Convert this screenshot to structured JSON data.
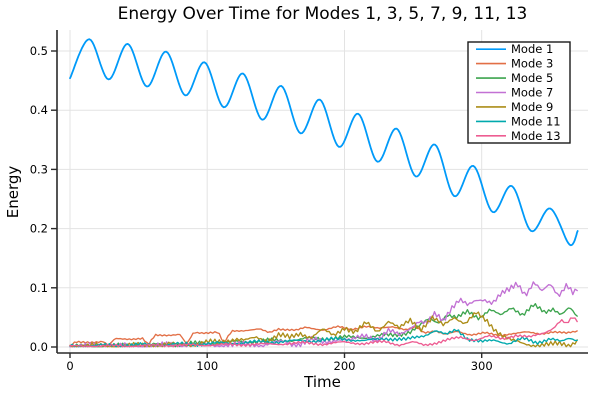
{
  "chart_data": {
    "type": "line",
    "title": "Energy Over Time for Modes 1, 3, 5, 7, 9, 11, 13",
    "xlabel": "Time",
    "ylabel": "Energy",
    "xlim": [
      -9.5,
      377.5
    ],
    "ylim": [
      -0.0101,
      0.5355
    ],
    "xticks": [
      0,
      100,
      200,
      300
    ],
    "yticks": [
      0.0,
      0.1,
      0.2,
      0.3,
      0.4,
      0.5
    ],
    "grid": true,
    "legend_position": "top-right",
    "colors": {
      "background": "#ffffff",
      "grid": "#e3e3e3",
      "spine": "#2a2a2a",
      "text": "#000000",
      "legend_border": "#1a1a1a",
      "legend_fill": "#ffffff"
    },
    "series": [
      {
        "name": "Mode 1",
        "color": "#009af9",
        "interp": "spline",
        "noise": 0,
        "points": [
          [
            0,
            0.454
          ],
          [
            14,
            0.52
          ],
          [
            28,
            0.452
          ],
          [
            42,
            0.512
          ],
          [
            56,
            0.44
          ],
          [
            70,
            0.499
          ],
          [
            84,
            0.425
          ],
          [
            98,
            0.481
          ],
          [
            112,
            0.405
          ],
          [
            126,
            0.462
          ],
          [
            140,
            0.384
          ],
          [
            154,
            0.441
          ],
          [
            168,
            0.361
          ],
          [
            182,
            0.418
          ],
          [
            196,
            0.338
          ],
          [
            210,
            0.394
          ],
          [
            224,
            0.313
          ],
          [
            238,
            0.369
          ],
          [
            252,
            0.288
          ],
          [
            266,
            0.342
          ],
          [
            280,
            0.255
          ],
          [
            294,
            0.306
          ],
          [
            308,
            0.228
          ],
          [
            322,
            0.272
          ],
          [
            336,
            0.196
          ],
          [
            350,
            0.234
          ],
          [
            364,
            0.173
          ],
          [
            370,
            0.196
          ]
        ]
      },
      {
        "name": "Mode 3",
        "color": "#e26f46",
        "interp": "linear",
        "noise": 0.002,
        "points": [
          [
            0,
            0.001
          ],
          [
            4,
            0.008
          ],
          [
            24,
            0.009
          ],
          [
            28,
            0.002
          ],
          [
            33,
            0.014
          ],
          [
            53,
            0.014
          ],
          [
            57,
            0.003
          ],
          [
            62,
            0.02
          ],
          [
            80,
            0.021
          ],
          [
            85,
            0.004
          ],
          [
            90,
            0.024
          ],
          [
            108,
            0.025
          ],
          [
            112,
            0.006
          ],
          [
            118,
            0.027
          ],
          [
            138,
            0.03
          ],
          [
            145,
            0.024
          ],
          [
            152,
            0.031
          ],
          [
            165,
            0.028
          ],
          [
            172,
            0.033
          ],
          [
            185,
            0.029
          ],
          [
            195,
            0.034
          ],
          [
            205,
            0.03
          ],
          [
            215,
            0.035
          ],
          [
            225,
            0.031
          ],
          [
            235,
            0.035
          ],
          [
            245,
            0.029
          ],
          [
            252,
            0.033
          ],
          [
            258,
            0.024
          ],
          [
            266,
            0.028
          ],
          [
            274,
            0.021
          ],
          [
            282,
            0.026
          ],
          [
            292,
            0.021
          ],
          [
            302,
            0.024
          ],
          [
            312,
            0.019
          ],
          [
            322,
            0.023
          ],
          [
            332,
            0.025
          ],
          [
            342,
            0.022
          ],
          [
            352,
            0.026
          ],
          [
            362,
            0.023
          ],
          [
            370,
            0.027
          ]
        ]
      },
      {
        "name": "Mode 5",
        "color": "#3da44e",
        "interp": "linear",
        "noise": 0.005,
        "points": [
          [
            0,
            0.001
          ],
          [
            40,
            0.002
          ],
          [
            70,
            0.004
          ],
          [
            100,
            0.006
          ],
          [
            130,
            0.009
          ],
          [
            160,
            0.012
          ],
          [
            190,
            0.015
          ],
          [
            215,
            0.017
          ],
          [
            235,
            0.02
          ],
          [
            248,
            0.026
          ],
          [
            255,
            0.035
          ],
          [
            262,
            0.048
          ],
          [
            268,
            0.042
          ],
          [
            275,
            0.055
          ],
          [
            282,
            0.048
          ],
          [
            290,
            0.06
          ],
          [
            298,
            0.05
          ],
          [
            306,
            0.063
          ],
          [
            314,
            0.052
          ],
          [
            322,
            0.068
          ],
          [
            330,
            0.055
          ],
          [
            338,
            0.07
          ],
          [
            346,
            0.058
          ],
          [
            352,
            0.066
          ],
          [
            358,
            0.056
          ],
          [
            364,
            0.066
          ],
          [
            370,
            0.048
          ]
        ]
      },
      {
        "name": "Mode 7",
        "color": "#c271d4",
        "interp": "linear",
        "noise": 0.007,
        "points": [
          [
            0,
            0.001
          ],
          [
            60,
            0.002
          ],
          [
            100,
            0.003
          ],
          [
            140,
            0.004
          ],
          [
            155,
            0.008
          ],
          [
            165,
            0.005
          ],
          [
            175,
            0.012
          ],
          [
            185,
            0.007
          ],
          [
            195,
            0.015
          ],
          [
            205,
            0.01
          ],
          [
            215,
            0.02
          ],
          [
            225,
            0.014
          ],
          [
            232,
            0.026
          ],
          [
            240,
            0.02
          ],
          [
            248,
            0.034
          ],
          [
            254,
            0.044
          ],
          [
            260,
            0.038
          ],
          [
            266,
            0.055
          ],
          [
            272,
            0.046
          ],
          [
            278,
            0.068
          ],
          [
            284,
            0.08
          ],
          [
            290,
            0.068
          ],
          [
            296,
            0.078
          ],
          [
            302,
            0.082
          ],
          [
            308,
            0.076
          ],
          [
            314,
            0.088
          ],
          [
            320,
            0.095
          ],
          [
            326,
            0.108
          ],
          [
            332,
            0.09
          ],
          [
            338,
            0.11
          ],
          [
            344,
            0.092
          ],
          [
            350,
            0.105
          ],
          [
            356,
            0.088
          ],
          [
            362,
            0.108
          ],
          [
            367,
            0.09
          ],
          [
            370,
            0.098
          ]
        ]
      },
      {
        "name": "Mode 9",
        "color": "#ac8d18",
        "interp": "linear",
        "noise": 0.006,
        "points": [
          [
            0,
            0.001
          ],
          [
            30,
            0.002
          ],
          [
            60,
            0.003
          ],
          [
            90,
            0.005
          ],
          [
            110,
            0.009
          ],
          [
            120,
            0.014
          ],
          [
            128,
            0.01
          ],
          [
            136,
            0.016
          ],
          [
            144,
            0.012
          ],
          [
            152,
            0.02
          ],
          [
            160,
            0.015
          ],
          [
            168,
            0.024
          ],
          [
            176,
            0.017
          ],
          [
            184,
            0.028
          ],
          [
            192,
            0.02
          ],
          [
            200,
            0.034
          ],
          [
            208,
            0.024
          ],
          [
            216,
            0.04
          ],
          [
            224,
            0.028
          ],
          [
            232,
            0.044
          ],
          [
            240,
            0.03
          ],
          [
            248,
            0.046
          ],
          [
            256,
            0.032
          ],
          [
            264,
            0.048
          ],
          [
            272,
            0.036
          ],
          [
            280,
            0.052
          ],
          [
            288,
            0.04
          ],
          [
            296,
            0.056
          ],
          [
            304,
            0.044
          ],
          [
            310,
            0.03
          ],
          [
            316,
            0.018
          ],
          [
            322,
            0.01
          ],
          [
            330,
            0.006
          ],
          [
            340,
            0.004
          ],
          [
            350,
            0.003
          ],
          [
            358,
            0.006
          ],
          [
            364,
            0.004
          ],
          [
            370,
            0.012
          ]
        ]
      },
      {
        "name": "Mode 11",
        "color": "#00a9ad",
        "interp": "linear",
        "noise": 0.004,
        "points": [
          [
            0,
            0.002
          ],
          [
            30,
            0.003
          ],
          [
            60,
            0.004
          ],
          [
            90,
            0.005
          ],
          [
            120,
            0.007
          ],
          [
            150,
            0.009
          ],
          [
            180,
            0.011
          ],
          [
            200,
            0.014
          ],
          [
            215,
            0.01
          ],
          [
            230,
            0.015
          ],
          [
            245,
            0.012
          ],
          [
            258,
            0.02
          ],
          [
            266,
            0.028
          ],
          [
            274,
            0.02
          ],
          [
            282,
            0.03
          ],
          [
            290,
            0.014
          ],
          [
            300,
            0.008
          ],
          [
            310,
            0.012
          ],
          [
            320,
            0.006
          ],
          [
            330,
            0.014
          ],
          [
            340,
            0.008
          ],
          [
            350,
            0.014
          ],
          [
            358,
            0.008
          ],
          [
            364,
            0.015
          ],
          [
            370,
            0.012
          ]
        ]
      },
      {
        "name": "Mode 13",
        "color": "#ed5d92",
        "interp": "linear",
        "noise": 0.003,
        "points": [
          [
            0,
            0.001
          ],
          [
            40,
            0.002
          ],
          [
            80,
            0.003
          ],
          [
            120,
            0.004
          ],
          [
            150,
            0.005
          ],
          [
            170,
            0.007
          ],
          [
            185,
            0.005
          ],
          [
            200,
            0.008
          ],
          [
            215,
            0.006
          ],
          [
            230,
            0.009
          ],
          [
            240,
            0.004
          ],
          [
            250,
            0.008
          ],
          [
            258,
            0.003
          ],
          [
            266,
            0.007
          ],
          [
            275,
            0.012
          ],
          [
            285,
            0.016
          ],
          [
            295,
            0.012
          ],
          [
            305,
            0.018
          ],
          [
            315,
            0.014
          ],
          [
            325,
            0.02
          ],
          [
            335,
            0.016
          ],
          [
            345,
            0.024
          ],
          [
            352,
            0.032
          ],
          [
            358,
            0.045
          ],
          [
            362,
            0.038
          ],
          [
            366,
            0.05
          ],
          [
            370,
            0.044
          ]
        ]
      }
    ]
  }
}
